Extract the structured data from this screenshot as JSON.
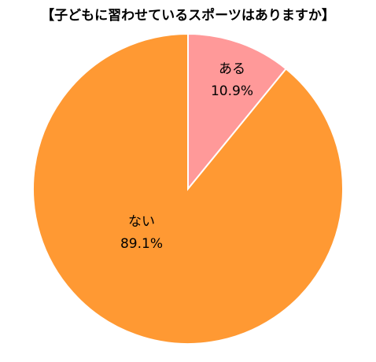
{
  "chart_data": {
    "type": "pie",
    "title": "【子どもに習わせているスポーツはありますか】",
    "categories": [
      "ある",
      "ない"
    ],
    "values": [
      10.9,
      89.1
    ],
    "value_labels": [
      "10.9%",
      "89.1%"
    ],
    "colors": [
      "#ff9999",
      "#ff9933"
    ]
  }
}
